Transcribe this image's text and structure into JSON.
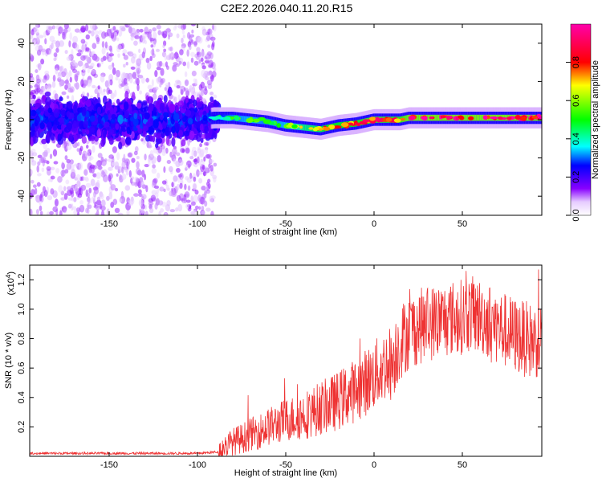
{
  "title": "C2E2.2026.040.11.20.R15",
  "chart_data": [
    {
      "type": "heatmap",
      "xlabel": "Height of straight line (km)",
      "ylabel": "Frequency (Hz)",
      "xlim": [
        -195,
        95
      ],
      "ylim": [
        -50,
        50
      ],
      "xticks": [
        -150,
        -100,
        -50,
        0,
        50
      ],
      "xtick_labels": [
        "-150",
        "-100",
        "-50",
        "0",
        "50"
      ],
      "yticks": [
        -40,
        -20,
        0,
        20,
        40
      ],
      "ytick_labels": [
        "-40",
        "-20",
        "0",
        "20",
        "40"
      ],
      "colorbar": {
        "label": "Normalized spectral amplitude",
        "range": [
          0,
          1
        ],
        "ticks": [
          0.0,
          0.2,
          0.4,
          0.6,
          0.8
        ],
        "tick_labels": [
          "0.0",
          "0.2",
          "0.4",
          "0.6",
          "0.8"
        ]
      },
      "ridge": {
        "x": [
          -195,
          -150,
          -100,
          -90,
          -80,
          -70,
          -60,
          -50,
          -40,
          -30,
          -25,
          -20,
          -10,
          0,
          10,
          15,
          20,
          50,
          95
        ],
        "frequency": [
          0,
          0,
          0,
          1,
          1,
          0,
          -1,
          -3,
          -4,
          -5,
          -4,
          -3,
          -2,
          0,
          0,
          0,
          1,
          1,
          1
        ],
        "amplitude": [
          0.15,
          0.18,
          0.22,
          0.4,
          0.5,
          0.55,
          0.5,
          0.55,
          0.7,
          0.75,
          0.85,
          0.8,
          0.82,
          0.9,
          0.85,
          0.85,
          0.95,
          0.95,
          0.95
        ]
      },
      "grid": false
    },
    {
      "type": "line",
      "xlabel": "Height of straight line (km)",
      "ylabel": "SNR (10 * v/v)",
      "scale_label": "(x10",
      "scale_exponent": "4",
      "scale_suffix": ")",
      "xlim": [
        -195,
        95
      ],
      "ylim": [
        0,
        1.3
      ],
      "xticks": [
        -150,
        -100,
        -50,
        0,
        50
      ],
      "xtick_labels": [
        "-150",
        "-100",
        "-50",
        "0",
        "50"
      ],
      "yticks": [
        0.2,
        0.4,
        0.6,
        0.8,
        1.0,
        1.2
      ],
      "ytick_labels": [
        "0.2",
        "0.4",
        "0.6",
        "0.8",
        "1.0",
        "1.2"
      ],
      "series": [
        {
          "color": "#ee3333",
          "x": [
            -195,
            -150,
            -100,
            -88,
            -85,
            -80,
            -75,
            -70,
            -65,
            -60,
            -55,
            -50,
            -45,
            -40,
            -35,
            -30,
            -25,
            -20,
            -15,
            -10,
            -5,
            0,
            5,
            8,
            10,
            12,
            15,
            20,
            25,
            30,
            40,
            50,
            55,
            60,
            65,
            70,
            75,
            80,
            85,
            90,
            95
          ],
          "values": [
            0.02,
            0.02,
            0.02,
            0.03,
            0.06,
            0.1,
            0.12,
            0.15,
            0.17,
            0.2,
            0.22,
            0.25,
            0.26,
            0.28,
            0.3,
            0.33,
            0.35,
            0.38,
            0.42,
            0.45,
            0.5,
            0.55,
            0.6,
            0.65,
            0.62,
            0.7,
            0.78,
            0.85,
            0.88,
            0.9,
            0.93,
            0.95,
            0.97,
            0.95,
            0.92,
            0.88,
            0.85,
            0.82,
            0.8,
            0.78,
            0.8
          ]
        }
      ],
      "grid": false
    }
  ]
}
